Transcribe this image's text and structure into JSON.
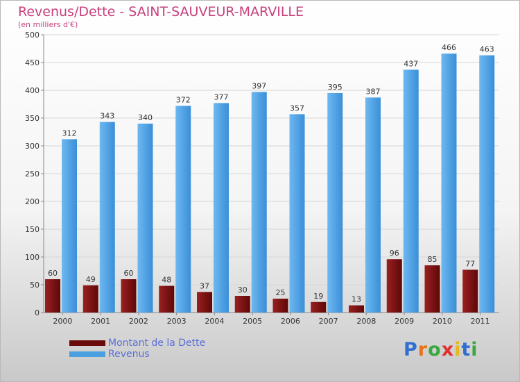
{
  "header": {
    "title": "Revenus/Dette - SAINT-SAUVEUR-MARVILLE",
    "subtitle": "(en milliers d'€)"
  },
  "chart_data": {
    "type": "bar",
    "categories": [
      "2000",
      "2001",
      "2002",
      "2003",
      "2004",
      "2005",
      "2006",
      "2007",
      "2008",
      "2009",
      "2010",
      "2011"
    ],
    "series": [
      {
        "name": "Montant de la Dette",
        "color": "#7a1010",
        "values": [
          60,
          49,
          60,
          48,
          37,
          30,
          25,
          19,
          13,
          96,
          85,
          77
        ]
      },
      {
        "name": "Revenus",
        "color": "#4aa0e0",
        "values": [
          312,
          343,
          340,
          372,
          377,
          397,
          357,
          395,
          387,
          437,
          466,
          463
        ]
      }
    ],
    "ylim": [
      0,
      500
    ],
    "yticks": [
      0,
      50,
      100,
      150,
      200,
      250,
      300,
      350,
      400,
      450,
      500
    ],
    "grid": true,
    "legend_position": "bottom-left"
  },
  "logo": {
    "letters": [
      {
        "char": "P",
        "color": "#2f6fd0"
      },
      {
        "char": "r",
        "color": "#e8731a"
      },
      {
        "char": "o",
        "color": "#3aa840"
      },
      {
        "char": "x",
        "color": "#e03030"
      },
      {
        "char": "i",
        "color": "#e8b81a"
      },
      {
        "char": "t",
        "color": "#2f6fd0"
      },
      {
        "char": "i",
        "color": "#3aa840"
      }
    ]
  }
}
